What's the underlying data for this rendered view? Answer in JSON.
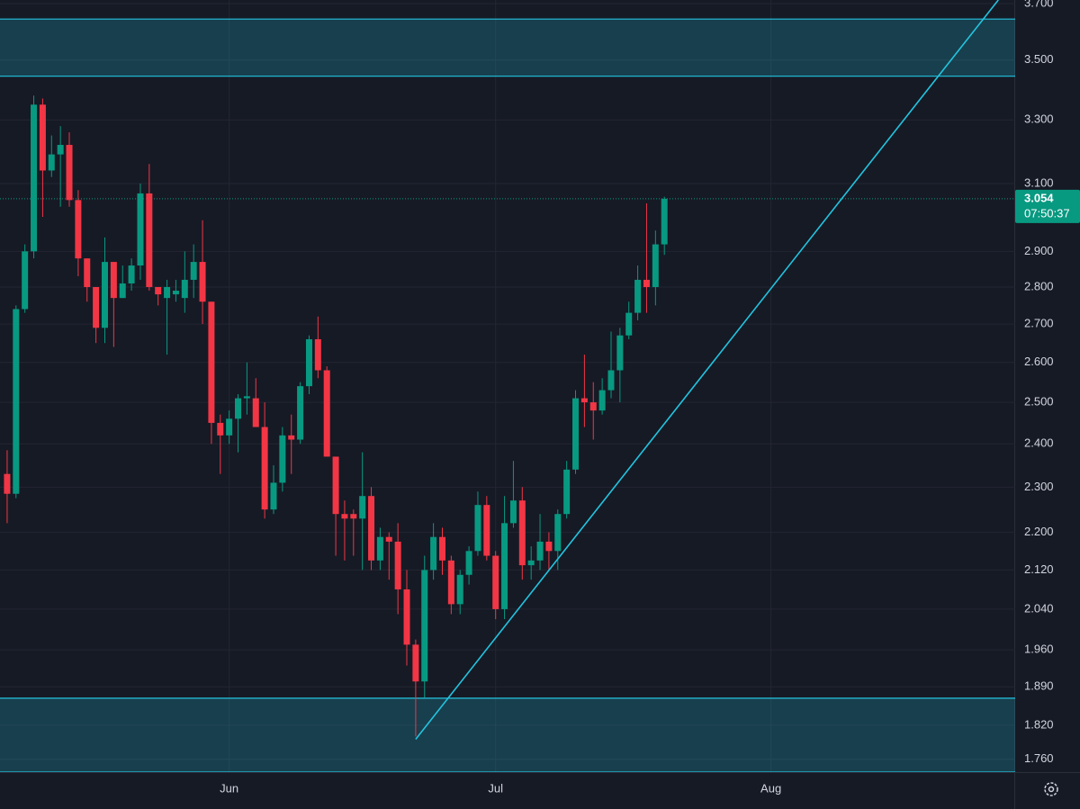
{
  "chart_data": {
    "type": "candlestick",
    "log_scale": true,
    "grid": true,
    "categories": [
      null,
      null,
      null,
      null,
      null,
      null,
      null,
      null,
      null,
      null,
      null,
      null,
      null,
      null,
      null,
      null,
      null,
      null,
      null,
      null,
      null,
      null,
      null,
      null,
      null,
      "Jun",
      null,
      null,
      null,
      null,
      null,
      null,
      null,
      null,
      null,
      null,
      null,
      null,
      null,
      null,
      null,
      null,
      null,
      null,
      null,
      null,
      null,
      null,
      null,
      null,
      null,
      null,
      null,
      null,
      null,
      "Jul",
      null,
      null,
      null,
      null,
      null,
      null,
      null,
      null,
      null,
      null,
      null,
      null,
      null,
      null,
      null,
      null,
      null,
      null,
      null,
      null,
      null,
      null,
      null,
      null,
      null,
      null,
      null,
      null,
      null,
      null,
      "Aug",
      null,
      null,
      null,
      null,
      null,
      null,
      null,
      null,
      null,
      null,
      null,
      null,
      null,
      null,
      null,
      null,
      null,
      null,
      null,
      null,
      null,
      null,
      null,
      null,
      null,
      null,
      null
    ],
    "open": [
      2.33,
      2.285,
      2.74,
      2.9,
      3.35,
      3.14,
      3.19,
      3.22,
      3.05,
      2.88,
      2.8,
      2.69,
      2.87,
      2.77,
      2.81,
      2.86,
      3.07,
      2.8,
      2.77,
      2.78,
      2.77,
      2.82,
      2.87,
      2.76,
      2.45,
      2.42,
      2.46,
      2.51,
      2.51,
      2.44,
      2.25,
      2.31,
      2.42,
      2.41,
      2.54,
      2.66,
      2.58,
      2.37,
      2.24,
      2.24,
      2.23,
      2.28,
      2.14,
      2.19,
      2.18,
      2.08,
      1.97,
      1.9,
      2.12,
      2.19,
      2.14,
      2.05,
      2.11,
      2.16,
      2.26,
      2.15,
      2.04,
      2.22,
      2.27,
      2.13,
      2.14,
      2.18,
      2.16,
      2.24,
      2.34,
      2.51,
      2.5,
      2.48,
      2.53,
      2.58,
      2.67,
      2.73,
      2.82,
      2.8,
      2.92,
      null,
      null,
      null,
      null,
      null,
      null,
      null,
      null,
      null,
      null,
      null,
      null,
      null,
      null,
      null,
      null,
      null,
      null,
      null,
      null,
      null,
      null,
      null,
      null,
      null,
      null,
      null,
      null,
      null,
      null,
      null,
      null,
      null,
      null,
      null,
      null,
      null,
      null,
      null
    ],
    "high": [
      2.385,
      2.75,
      2.92,
      3.38,
      3.37,
      3.25,
      3.28,
      3.26,
      3.08,
      2.88,
      2.8,
      2.94,
      2.87,
      2.86,
      2.88,
      3.1,
      3.16,
      2.8,
      2.82,
      2.82,
      2.9,
      2.92,
      2.99,
      2.76,
      2.47,
      2.48,
      2.52,
      2.6,
      2.56,
      2.5,
      2.35,
      2.44,
      2.47,
      2.55,
      2.67,
      2.72,
      2.59,
      2.37,
      2.27,
      2.25,
      2.38,
      2.3,
      2.21,
      2.2,
      2.22,
      2.12,
      1.98,
      2.15,
      2.22,
      2.21,
      2.15,
      2.12,
      2.17,
      2.29,
      2.28,
      2.16,
      2.28,
      2.36,
      2.3,
      2.17,
      2.24,
      2.2,
      2.25,
      2.36,
      2.53,
      2.62,
      2.55,
      2.56,
      2.68,
      2.69,
      2.76,
      2.86,
      3.04,
      2.96,
      3.06,
      null,
      null,
      null,
      null,
      null,
      null,
      null,
      null,
      null,
      null,
      null,
      null,
      null,
      null,
      null,
      null,
      null,
      null,
      null,
      null,
      null,
      null,
      null,
      null,
      null,
      null,
      null,
      null,
      null,
      null,
      null,
      null,
      null,
      null,
      null,
      null,
      null,
      null,
      null
    ],
    "low": [
      2.22,
      2.275,
      2.73,
      2.88,
      3.0,
      3.12,
      3.03,
      3.03,
      2.83,
      2.76,
      2.65,
      2.65,
      2.64,
      2.77,
      2.79,
      2.82,
      2.79,
      2.75,
      2.62,
      2.76,
      2.73,
      2.77,
      2.7,
      2.4,
      2.33,
      2.4,
      2.38,
      2.47,
      2.44,
      2.23,
      2.24,
      2.29,
      2.33,
      2.4,
      2.52,
      2.56,
      2.37,
      2.15,
      2.14,
      2.15,
      2.12,
      2.12,
      2.12,
      2.1,
      2.03,
      1.93,
      1.8,
      1.87,
      2.1,
      2.11,
      2.03,
      2.03,
      2.09,
      2.15,
      2.14,
      2.02,
      2.02,
      2.21,
      2.1,
      2.1,
      2.12,
      2.12,
      2.12,
      2.23,
      2.33,
      2.44,
      2.41,
      2.47,
      2.51,
      2.5,
      2.66,
      2.71,
      2.73,
      2.75,
      2.89,
      null,
      null,
      null,
      null,
      null,
      null,
      null,
      null,
      null,
      null,
      null,
      null,
      null,
      null,
      null,
      null,
      null,
      null,
      null,
      null,
      null,
      null,
      null,
      null,
      null,
      null,
      null,
      null,
      null,
      null,
      null,
      null,
      null,
      null,
      null,
      null,
      null,
      null,
      null
    ],
    "close": [
      2.285,
      2.74,
      2.9,
      3.35,
      3.14,
      3.19,
      3.22,
      3.05,
      2.88,
      2.8,
      2.69,
      2.87,
      2.77,
      2.81,
      2.86,
      3.07,
      2.8,
      2.78,
      2.8,
      2.79,
      2.82,
      2.87,
      2.76,
      2.45,
      2.42,
      2.46,
      2.51,
      2.515,
      2.44,
      2.25,
      2.31,
      2.42,
      2.41,
      2.54,
      2.66,
      2.58,
      2.37,
      2.24,
      2.23,
      2.23,
      2.28,
      2.14,
      2.19,
      2.18,
      2.08,
      1.97,
      1.9,
      2.12,
      2.19,
      2.14,
      2.05,
      2.11,
      2.16,
      2.26,
      2.15,
      2.04,
      2.22,
      2.27,
      2.13,
      2.14,
      2.18,
      2.16,
      2.24,
      2.34,
      2.51,
      2.5,
      2.48,
      2.53,
      2.58,
      2.67,
      2.73,
      2.82,
      2.8,
      2.92,
      3.054,
      null,
      null,
      null,
      null,
      null,
      null,
      null,
      null,
      null,
      null,
      null,
      null,
      null,
      null,
      null,
      null,
      null,
      null,
      null,
      null,
      null,
      null,
      null,
      null,
      null,
      null,
      null,
      null,
      null,
      null,
      null,
      null,
      null,
      null,
      null,
      null,
      null,
      null,
      null
    ],
    "up_color": "#089981",
    "down_color": "#f23645",
    "ylim": [
      1.738,
      3.713
    ],
    "yticks": [
      {
        "value": 1.76,
        "label": "1.760"
      },
      {
        "value": 1.82,
        "label": "1.820"
      },
      {
        "value": 1.89,
        "label": "1.890"
      },
      {
        "value": 1.96,
        "label": "1.960"
      },
      {
        "value": 2.04,
        "label": "2.040"
      },
      {
        "value": 2.12,
        "label": "2.120"
      },
      {
        "value": 2.2,
        "label": "2.200"
      },
      {
        "value": 2.3,
        "label": "2.300"
      },
      {
        "value": 2.4,
        "label": "2.400"
      },
      {
        "value": 2.5,
        "label": "2.500"
      },
      {
        "value": 2.6,
        "label": "2.600"
      },
      {
        "value": 2.7,
        "label": "2.700"
      },
      {
        "value": 2.8,
        "label": "2.800"
      },
      {
        "value": 2.9,
        "label": "2.900"
      },
      {
        "value": 3.1,
        "label": "3.100"
      },
      {
        "value": 3.3,
        "label": "3.300"
      },
      {
        "value": 3.5,
        "label": "3.500"
      },
      {
        "value": 3.7,
        "label": "3.700"
      }
    ],
    "zones": [
      {
        "from": 3.445,
        "to": 3.644
      },
      {
        "from": 1.738,
        "to": 1.869
      }
    ],
    "zone_color": "#22c4e0",
    "trendline": {
      "x": [
        46,
        111.6
      ],
      "y": [
        1.795,
        3.713
      ],
      "color": "#22c4e0"
    },
    "last_price": 3.054,
    "countdown": "07:50:37"
  }
}
